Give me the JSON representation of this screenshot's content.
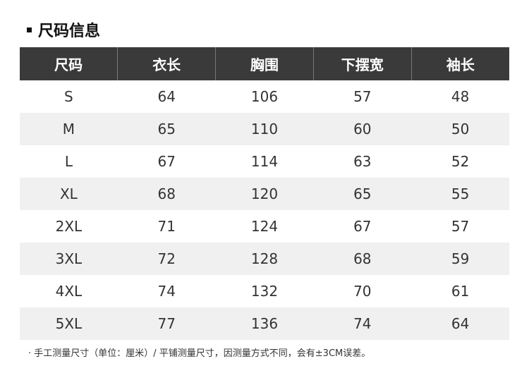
{
  "title": "尺码信息",
  "headers": [
    "尺码",
    "衣长",
    "胸围",
    "下摆宽",
    "袖长"
  ],
  "rows": [
    [
      "S",
      "64",
      "106",
      "57",
      "48"
    ],
    [
      "M",
      "65",
      "110",
      "60",
      "50"
    ],
    [
      "L",
      "67",
      "114",
      "63",
      "52"
    ],
    [
      "XL",
      "68",
      "120",
      "65",
      "55"
    ],
    [
      "2XL",
      "71",
      "124",
      "67",
      "57"
    ],
    [
      "3XL",
      "72",
      "128",
      "68",
      "59"
    ],
    [
      "4XL",
      "74",
      "132",
      "70",
      "61"
    ],
    [
      "5XL",
      "77",
      "136",
      "74",
      "64"
    ]
  ],
  "note": "· 手工测量尺寸（单位：厘米）/ 平铺测量尺寸，因测量方式不同，会有±3CM误差。"
}
